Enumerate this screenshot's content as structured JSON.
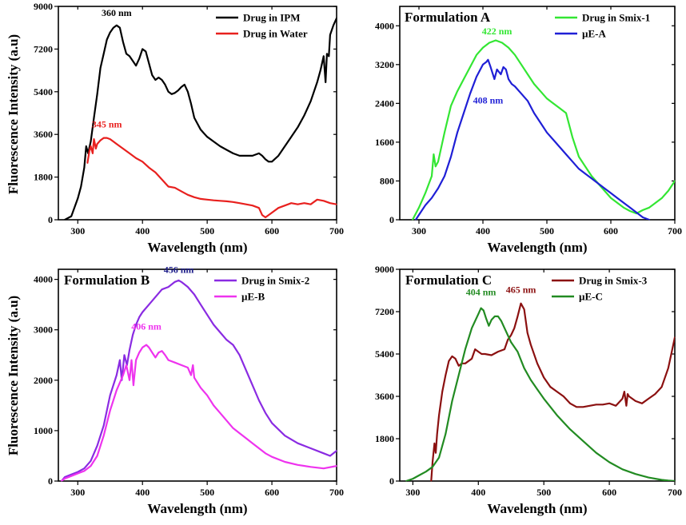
{
  "figure": {
    "ylabel": "Fluorescence Intensity (a.u)"
  },
  "chart_data": [
    {
      "type": "line",
      "title": "",
      "xlabel": "Wavelength (nm)",
      "ylabel": "Fluorescence Intensity (a.u)",
      "xlim": [
        270,
        700
      ],
      "ylim": [
        0,
        9000
      ],
      "xticks": [
        300,
        400,
        500,
        600,
        700
      ],
      "yticks": [
        0,
        1800,
        3600,
        5400,
        7200,
        9000
      ],
      "legend": "top-right",
      "series": [
        {
          "name": "Drug in IPM",
          "color": "#000000",
          "x": [
            280,
            290,
            300,
            305,
            310,
            313,
            316,
            320,
            325,
            330,
            335,
            340,
            345,
            350,
            355,
            360,
            365,
            370,
            375,
            380,
            385,
            390,
            395,
            400,
            405,
            410,
            415,
            420,
            425,
            430,
            435,
            440,
            445,
            450,
            455,
            460,
            465,
            470,
            475,
            480,
            490,
            500,
            510,
            520,
            530,
            540,
            550,
            560,
            570,
            580,
            585,
            590,
            595,
            600,
            610,
            620,
            630,
            640,
            650,
            660,
            670,
            675,
            680,
            683,
            685,
            688,
            690,
            695,
            700
          ],
          "values": [
            0,
            150,
            900,
            1400,
            2200,
            3100,
            2800,
            3300,
            4300,
            5300,
            6400,
            7000,
            7600,
            7900,
            8100,
            8200,
            8100,
            7500,
            7000,
            6900,
            6700,
            6500,
            6800,
            7200,
            7100,
            6600,
            6100,
            5900,
            6000,
            5900,
            5700,
            5400,
            5300,
            5350,
            5450,
            5600,
            5700,
            5400,
            4900,
            4300,
            3800,
            3500,
            3300,
            3100,
            2950,
            2800,
            2700,
            2700,
            2700,
            2800,
            2700,
            2550,
            2450,
            2450,
            2700,
            3100,
            3500,
            3900,
            4400,
            5000,
            5800,
            6300,
            6900,
            5800,
            7000,
            6900,
            7800,
            8200,
            8500
          ]
        },
        {
          "name": "Drug in Water",
          "color": "#e8201e",
          "x": [
            315,
            318,
            320,
            323,
            325,
            328,
            330,
            335,
            340,
            345,
            350,
            355,
            360,
            370,
            380,
            390,
            400,
            410,
            420,
            430,
            440,
            450,
            460,
            470,
            480,
            490,
            500,
            510,
            520,
            530,
            540,
            550,
            560,
            570,
            580,
            585,
            590,
            595,
            600,
            610,
            620,
            630,
            640,
            650,
            660,
            670,
            680,
            690,
            700
          ],
          "values": [
            2400,
            2900,
            3100,
            2800,
            3400,
            3000,
            3200,
            3350,
            3450,
            3450,
            3400,
            3300,
            3200,
            3000,
            2800,
            2600,
            2450,
            2200,
            2000,
            1700,
            1400,
            1350,
            1200,
            1050,
            950,
            880,
            850,
            820,
            800,
            780,
            750,
            700,
            650,
            600,
            500,
            200,
            100,
            200,
            300,
            500,
            600,
            700,
            650,
            700,
            650,
            850,
            800,
            700,
            650
          ]
        }
      ],
      "annotations": [
        {
          "text": "360 nm",
          "x": 360,
          "y": 8600,
          "color": "#000000"
        },
        {
          "text": "345 nm",
          "x": 345,
          "y": 3900,
          "color": "#e8201e"
        }
      ]
    },
    {
      "type": "line",
      "title": "Formulation A",
      "xlabel": "Wavelength (nm)",
      "ylabel": "",
      "xlim": [
        270,
        700
      ],
      "ylim": [
        0,
        4400
      ],
      "xticks": [
        300,
        400,
        500,
        600,
        700
      ],
      "yticks": [
        0,
        800,
        1600,
        2400,
        3200,
        4000
      ],
      "legend": "top-right",
      "series": [
        {
          "name": "Drug in Smix-1",
          "color": "#33e633",
          "x": [
            290,
            300,
            310,
            320,
            323,
            326,
            330,
            340,
            350,
            360,
            370,
            380,
            390,
            400,
            410,
            420,
            430,
            440,
            450,
            460,
            470,
            480,
            490,
            500,
            510,
            520,
            530,
            540,
            550,
            560,
            570,
            580,
            590,
            600,
            610,
            620,
            630,
            640,
            650,
            660,
            670,
            680,
            690,
            700
          ],
          "values": [
            0,
            250,
            550,
            900,
            1350,
            1100,
            1200,
            1800,
            2350,
            2650,
            2900,
            3150,
            3400,
            3550,
            3650,
            3700,
            3650,
            3550,
            3400,
            3200,
            3000,
            2800,
            2650,
            2500,
            2400,
            2300,
            2200,
            1700,
            1300,
            1100,
            900,
            750,
            600,
            450,
            350,
            250,
            180,
            130,
            200,
            250,
            350,
            450,
            600,
            800
          ]
        },
        {
          "name": "µE-A",
          "color": "#1f1fd6",
          "x": [
            295,
            300,
            310,
            320,
            330,
            340,
            350,
            360,
            370,
            380,
            390,
            400,
            405,
            408,
            412,
            418,
            422,
            428,
            432,
            436,
            440,
            445,
            450,
            460,
            470,
            480,
            490,
            500,
            510,
            520,
            530,
            540,
            550,
            560,
            570,
            580,
            590,
            600,
            610,
            620,
            630,
            640,
            650,
            660
          ],
          "values": [
            0,
            100,
            300,
            450,
            650,
            900,
            1300,
            1800,
            2200,
            2600,
            2950,
            3200,
            3250,
            3300,
            3150,
            2900,
            3100,
            3000,
            3150,
            3100,
            2900,
            2800,
            2750,
            2600,
            2450,
            2200,
            2000,
            1800,
            1650,
            1500,
            1350,
            1200,
            1050,
            950,
            850,
            750,
            650,
            550,
            450,
            350,
            250,
            150,
            50,
            0
          ]
        }
      ],
      "annotations": [
        {
          "text": "422 nm",
          "x": 422,
          "y": 3820,
          "color": "#33e633"
        },
        {
          "text": "408 nm",
          "x": 408,
          "y": 2400,
          "color": "#1f1fd6"
        }
      ]
    },
    {
      "type": "line",
      "title": "Formulation B",
      "xlabel": "Wavelength (nm)",
      "ylabel": "Fluorescence Intensity (a.u)",
      "xlim": [
        270,
        700
      ],
      "ylim": [
        0,
        4200
      ],
      "xticks": [
        300,
        400,
        500,
        600,
        700
      ],
      "yticks": [
        0,
        1000,
        2000,
        3000,
        4000
      ],
      "legend": "top-right",
      "series": [
        {
          "name": "Drug in Smix-2",
          "color": "#8a2be2",
          "x": [
            275,
            280,
            290,
            300,
            310,
            320,
            330,
            340,
            350,
            360,
            365,
            368,
            372,
            376,
            380,
            385,
            390,
            395,
            400,
            410,
            420,
            430,
            440,
            450,
            456,
            460,
            465,
            470,
            480,
            490,
            500,
            510,
            520,
            530,
            540,
            550,
            560,
            570,
            580,
            590,
            600,
            620,
            640,
            660,
            680,
            690,
            700
          ],
          "values": [
            0,
            80,
            130,
            180,
            250,
            400,
            700,
            1100,
            1700,
            2100,
            2400,
            2000,
            2500,
            2300,
            2600,
            2900,
            3100,
            3250,
            3350,
            3500,
            3650,
            3800,
            3850,
            3950,
            3980,
            3950,
            3900,
            3850,
            3700,
            3500,
            3300,
            3100,
            2950,
            2800,
            2700,
            2500,
            2200,
            1900,
            1600,
            1350,
            1150,
            900,
            750,
            650,
            550,
            500,
            600
          ]
        },
        {
          "name": "µE-B",
          "color": "#ee33ee",
          "x": [
            275,
            280,
            290,
            300,
            310,
            320,
            330,
            340,
            350,
            360,
            370,
            375,
            380,
            383,
            386,
            390,
            395,
            400,
            406,
            410,
            415,
            420,
            425,
            430,
            435,
            440,
            450,
            460,
            470,
            475,
            478,
            480,
            490,
            500,
            510,
            520,
            530,
            540,
            550,
            560,
            570,
            580,
            590,
            600,
            620,
            640,
            660,
            680,
            700
          ],
          "values": [
            0,
            50,
            100,
            150,
            200,
            300,
            500,
            900,
            1400,
            1800,
            2100,
            2300,
            2000,
            2400,
            1900,
            2400,
            2550,
            2650,
            2700,
            2650,
            2550,
            2450,
            2550,
            2580,
            2500,
            2400,
            2350,
            2300,
            2250,
            2100,
            2300,
            2050,
            1850,
            1700,
            1500,
            1350,
            1200,
            1050,
            950,
            850,
            750,
            650,
            550,
            480,
            380,
            320,
            280,
            250,
            300
          ]
        }
      ],
      "annotations": [
        {
          "text": "456 nm",
          "x": 456,
          "y": 4130,
          "color": "#1c1c8a"
        },
        {
          "text": "406 nm",
          "x": 406,
          "y": 3000,
          "color": "#ee33ee"
        }
      ]
    },
    {
      "type": "line",
      "title": "Formulation C",
      "xlabel": "Wavelength (nm)",
      "ylabel": "",
      "xlim": [
        280,
        700
      ],
      "ylim": [
        0,
        9000
      ],
      "xticks": [
        300,
        400,
        500,
        600,
        700
      ],
      "yticks": [
        0,
        1800,
        3600,
        5400,
        7200,
        9000
      ],
      "legend": "top-right",
      "series": [
        {
          "name": "Drug in Smix-3",
          "color": "#8b1010",
          "x": [
            328,
            330,
            333,
            335,
            337,
            340,
            345,
            350,
            355,
            360,
            365,
            370,
            375,
            380,
            385,
            390,
            395,
            400,
            405,
            410,
            420,
            430,
            440,
            445,
            450,
            455,
            460,
            465,
            470,
            475,
            480,
            490,
            500,
            510,
            520,
            530,
            540,
            550,
            560,
            570,
            580,
            590,
            600,
            610,
            620,
            623,
            626,
            628,
            630,
            640,
            650,
            660,
            670,
            680,
            690,
            700
          ],
          "values": [
            0,
            800,
            1600,
            1200,
            2000,
            2800,
            3800,
            4500,
            5100,
            5300,
            5200,
            4900,
            5000,
            5000,
            5100,
            5200,
            5600,
            5500,
            5400,
            5400,
            5350,
            5500,
            5600,
            6000,
            6200,
            6500,
            7000,
            7550,
            7300,
            6300,
            5800,
            5000,
            4400,
            4000,
            3800,
            3600,
            3300,
            3150,
            3150,
            3200,
            3250,
            3250,
            3300,
            3200,
            3500,
            3800,
            3200,
            3700,
            3600,
            3400,
            3300,
            3500,
            3700,
            4000,
            4800,
            6100
          ]
        },
        {
          "name": "µE-C",
          "color": "#228b22",
          "x": [
            290,
            300,
            310,
            320,
            330,
            340,
            350,
            360,
            370,
            380,
            390,
            400,
            404,
            408,
            412,
            416,
            420,
            425,
            430,
            435,
            440,
            450,
            460,
            470,
            480,
            490,
            500,
            520,
            540,
            560,
            580,
            600,
            620,
            640,
            660,
            680,
            690,
            700
          ],
          "values": [
            0,
            100,
            250,
            400,
            600,
            1000,
            2000,
            3400,
            4500,
            5600,
            6500,
            7100,
            7350,
            7250,
            6900,
            6600,
            6850,
            7000,
            7000,
            6800,
            6500,
            5900,
            5500,
            4800,
            4300,
            3900,
            3500,
            2800,
            2200,
            1700,
            1200,
            800,
            500,
            300,
            150,
            50,
            20,
            0
          ]
        }
      ],
      "annotations": [
        {
          "text": "404 nm",
          "x": 404,
          "y": 7900,
          "color": "#228b22"
        },
        {
          "text": "465 nm",
          "x": 465,
          "y": 8000,
          "color": "#8b1010"
        }
      ]
    }
  ]
}
